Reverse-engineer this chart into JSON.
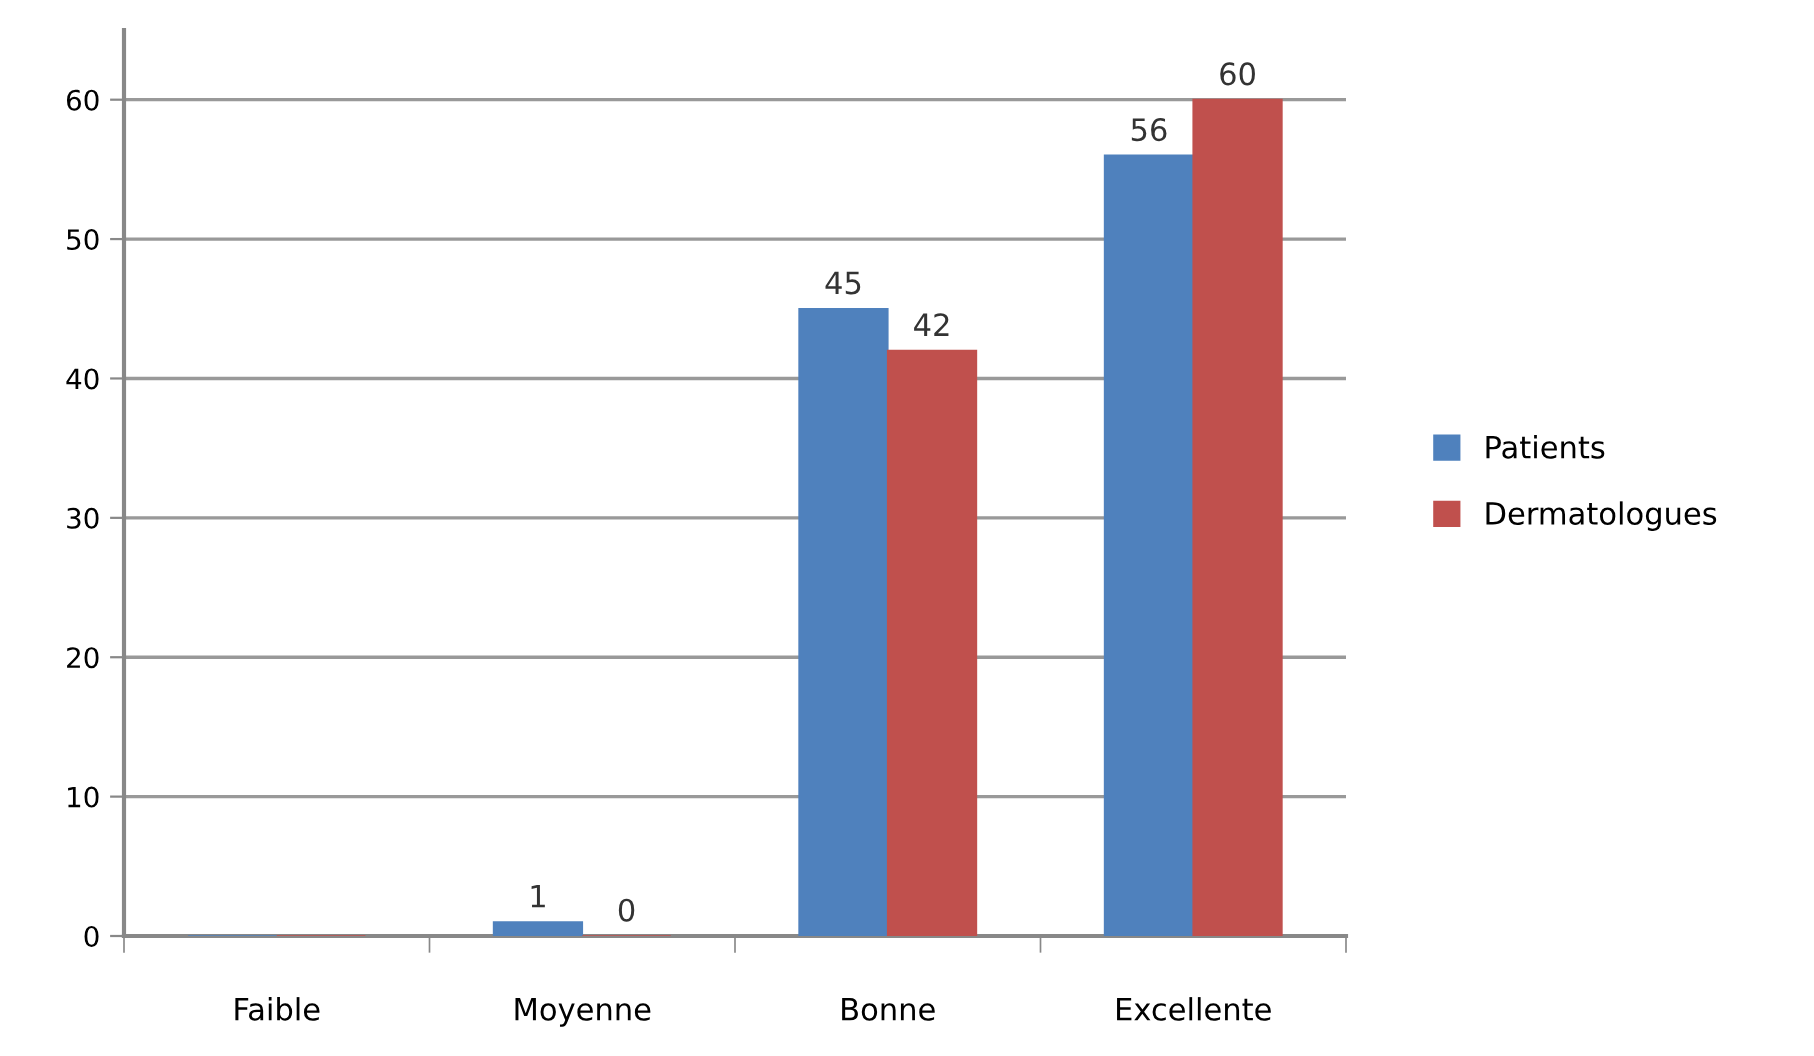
{
  "chart_data": {
    "type": "bar",
    "categories": [
      "Faible",
      "Moyenne",
      "Bonne",
      "Excellente"
    ],
    "series": [
      {
        "name": "Patients",
        "color": "#4f81bd",
        "values": [
          0,
          1,
          45,
          56
        ],
        "value_labels": [
          null,
          "1",
          "45",
          "56"
        ]
      },
      {
        "name": "Dermatologues",
        "color": "#c0504d",
        "values": [
          0,
          0,
          42,
          60
        ],
        "value_labels": [
          null,
          "0",
          "42",
          "60"
        ]
      }
    ],
    "ylim": [
      0,
      65
    ],
    "yticks": [
      0,
      10,
      20,
      30,
      40,
      50,
      60
    ],
    "grid": "y",
    "legend": "right"
  }
}
